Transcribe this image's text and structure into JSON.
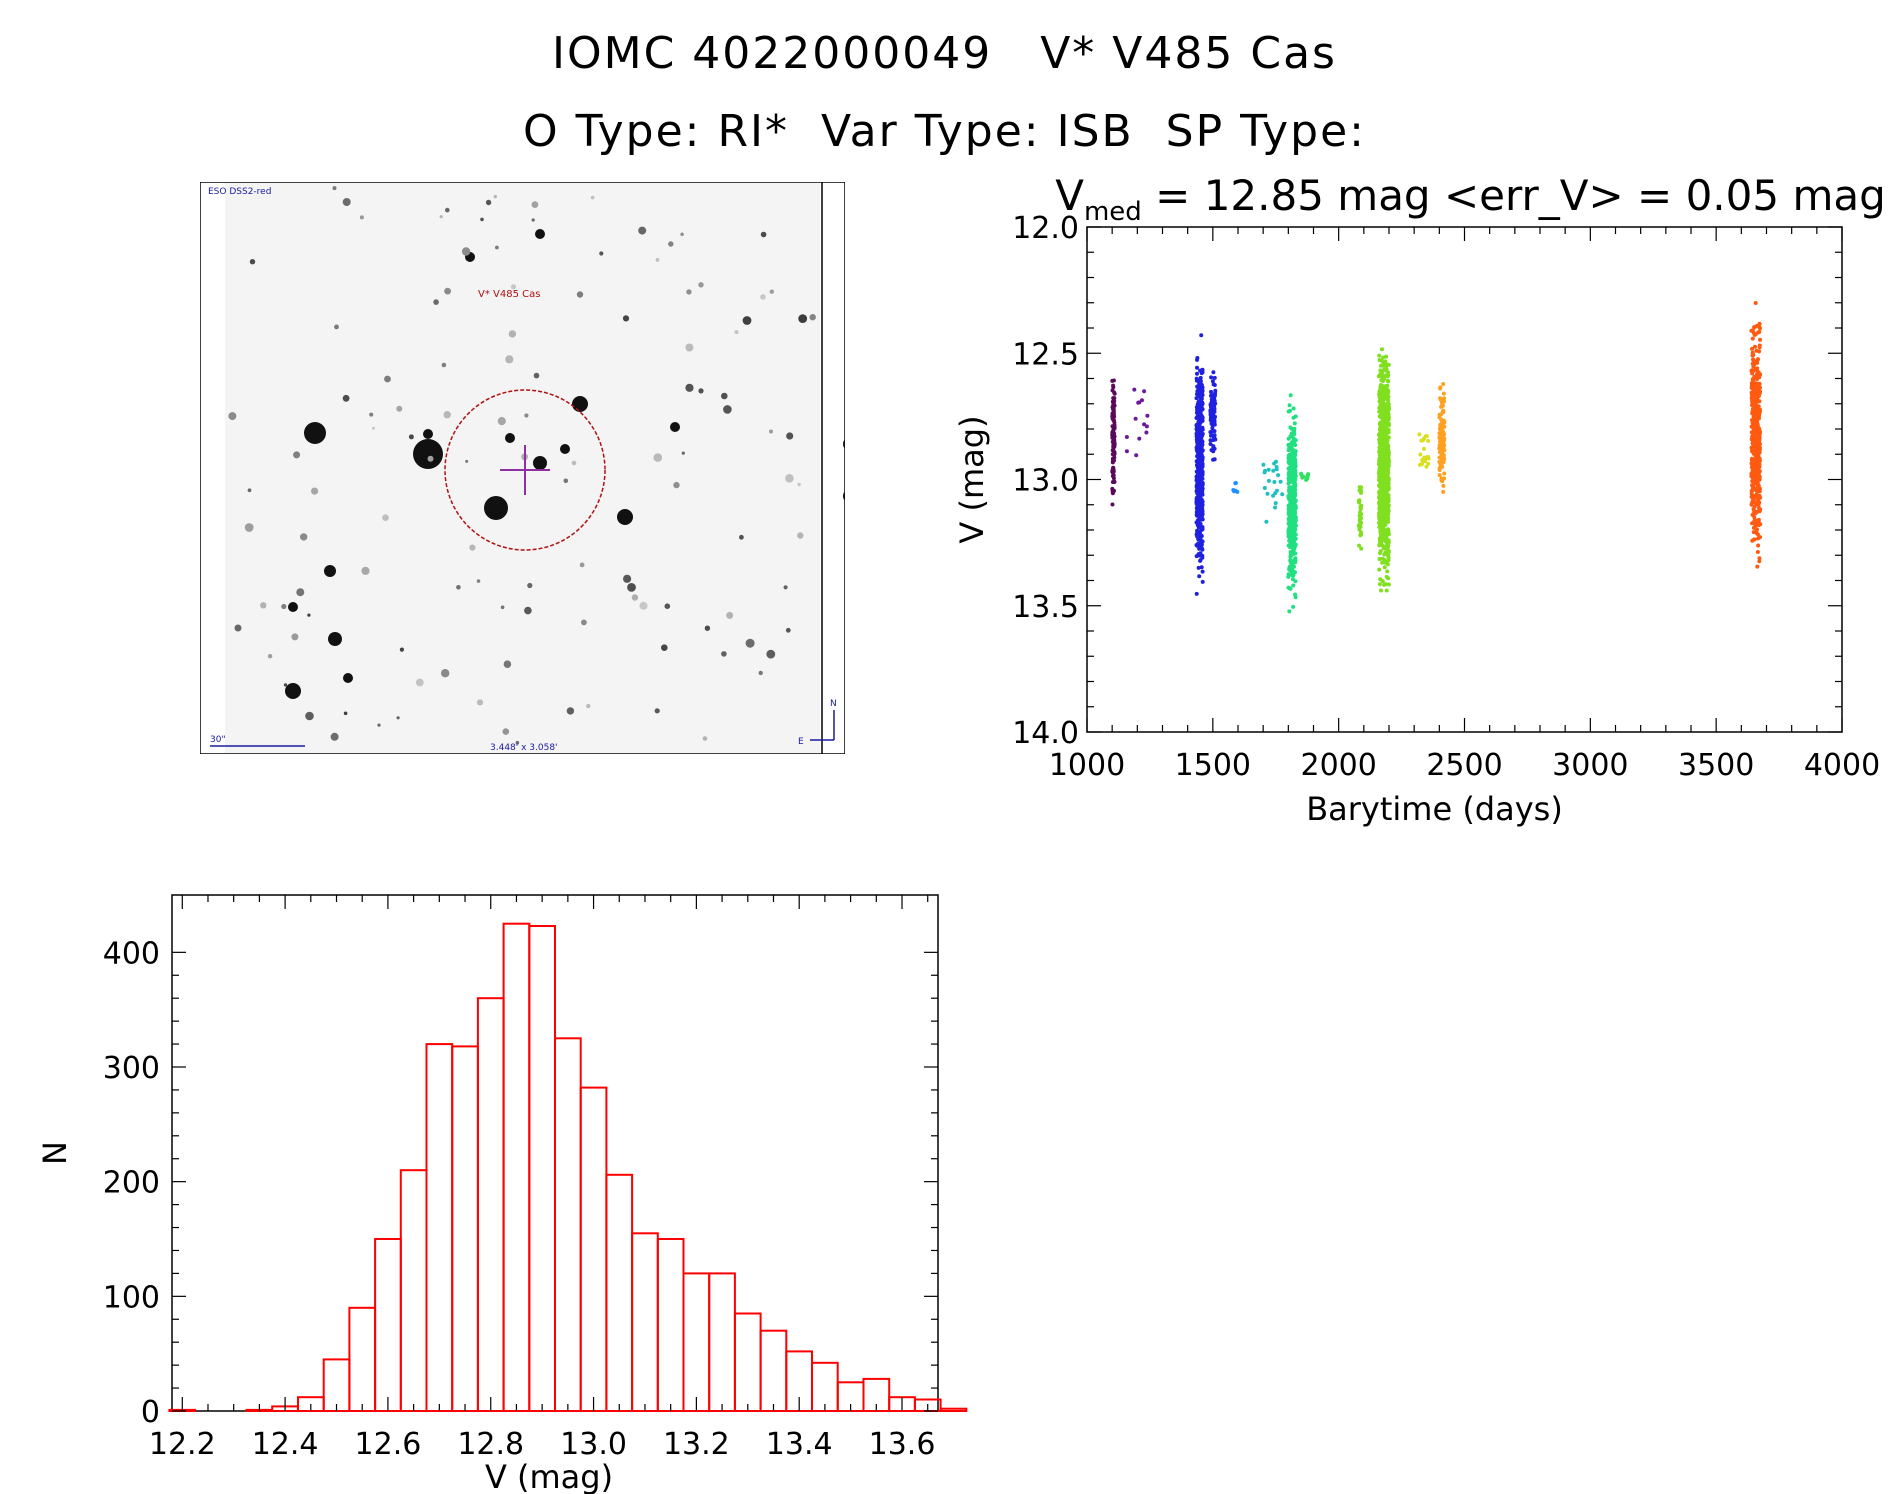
{
  "header": {
    "line1": "IOMC 4022000049   V* V485 Cas",
    "line2": "O Type: RI*  Var Type: ISB  SP Type:"
  },
  "finder_image": {
    "survey_label": "ESO DSS2-red",
    "target_label": "V* V485 Cas",
    "scale_label": "30\"",
    "fov_label": "3.448' x 3.058'",
    "compass_north": "N",
    "compass_east": "E"
  },
  "chart_data": [
    {
      "type": "scatter",
      "title": "V_med = 12.85 mag <err_V> = 0.05 mag",
      "title_main": "V",
      "title_sub": "med",
      "title_rest": " = 12.85 mag <err_V> = 0.05 mag",
      "xlabel": "Barytime (days)",
      "ylabel": "V (mag)",
      "xlim": [
        1000,
        4000
      ],
      "ylim": [
        14.0,
        12.0
      ],
      "y_inverted": true,
      "xticks": [
        "1000",
        "1500",
        "2000",
        "2500",
        "3000",
        "3500",
        "4000"
      ],
      "yticks": [
        "12.0",
        "12.5",
        "13.0",
        "13.5",
        "14.0"
      ],
      "series": [
        {
          "name": "seg1",
          "color": "#5a0a5a",
          "x_range": [
            1100,
            1110
          ],
          "y_range": [
            12.5,
            13.15
          ],
          "n": 110
        },
        {
          "name": "seg2",
          "color": "#6a1a9a",
          "x_range": [
            1145,
            1250
          ],
          "y_range": [
            12.55,
            13.0
          ],
          "n": 14
        },
        {
          "name": "seg3",
          "color": "#2020e0",
          "x_range": [
            1435,
            1460
          ],
          "y_range": [
            12.37,
            13.48
          ],
          "n": 520
        },
        {
          "name": "seg4",
          "color": "#2020e0",
          "x_range": [
            1490,
            1510
          ],
          "y_range": [
            12.53,
            13.0
          ],
          "n": 90
        },
        {
          "name": "seg5",
          "color": "#1e90ff",
          "x_range": [
            1580,
            1600
          ],
          "y_range": [
            12.97,
            13.1
          ],
          "n": 6
        },
        {
          "name": "seg6",
          "color": "#20c0c0",
          "x_range": [
            1700,
            1780
          ],
          "y_range": [
            12.82,
            13.25
          ],
          "n": 22
        },
        {
          "name": "seg7",
          "color": "#20e080",
          "x_range": [
            1800,
            1830
          ],
          "y_range": [
            12.58,
            13.58
          ],
          "n": 380
        },
        {
          "name": "seg8",
          "color": "#30e060",
          "x_range": [
            1850,
            1880
          ],
          "y_range": [
            12.96,
            13.02
          ],
          "n": 10
        },
        {
          "name": "seg9",
          "color": "#80e020",
          "x_range": [
            2080,
            2090
          ],
          "y_range": [
            12.97,
            13.32
          ],
          "n": 30
        },
        {
          "name": "seg10",
          "color": "#80e020",
          "x_range": [
            2160,
            2200
          ],
          "y_range": [
            12.42,
            13.5
          ],
          "n": 900
        },
        {
          "name": "seg11",
          "color": "#d8e020",
          "x_range": [
            2320,
            2360
          ],
          "y_range": [
            12.72,
            13.06
          ],
          "n": 22
        },
        {
          "name": "seg12",
          "color": "#ffa020",
          "x_range": [
            2400,
            2420
          ],
          "y_range": [
            12.57,
            13.1
          ],
          "n": 120
        },
        {
          "name": "seg13",
          "color": "#ff5a10",
          "x_range": [
            3640,
            3675
          ],
          "y_range": [
            12.22,
            13.43
          ],
          "n": 460
        }
      ]
    },
    {
      "type": "bar",
      "subtype": "histogram",
      "xlabel": "V (mag)",
      "ylabel": "N",
      "xlim": [
        12.18,
        13.67
      ],
      "ylim": [
        0,
        450
      ],
      "xticks": [
        "12.2",
        "12.4",
        "12.6",
        "12.8",
        "13.0",
        "13.2",
        "13.4",
        "13.6"
      ],
      "yticks": [
        "0",
        "100",
        "200",
        "300",
        "400"
      ],
      "bin_start": 12.2,
      "bin_width": 0.05,
      "values": [
        1,
        0,
        0,
        1,
        4,
        12,
        45,
        90,
        150,
        210,
        320,
        318,
        360,
        425,
        423,
        325,
        282,
        206,
        155,
        150,
        120,
        120,
        85,
        70,
        52,
        42,
        25,
        28,
        12,
        10,
        2
      ],
      "color": "#ff0000"
    }
  ],
  "colors": {
    "histogram": "#ff0000",
    "finder_circle": "#b01010",
    "finder_cross": "#9030a0",
    "finder_text_blue": "#1a1aa0"
  }
}
